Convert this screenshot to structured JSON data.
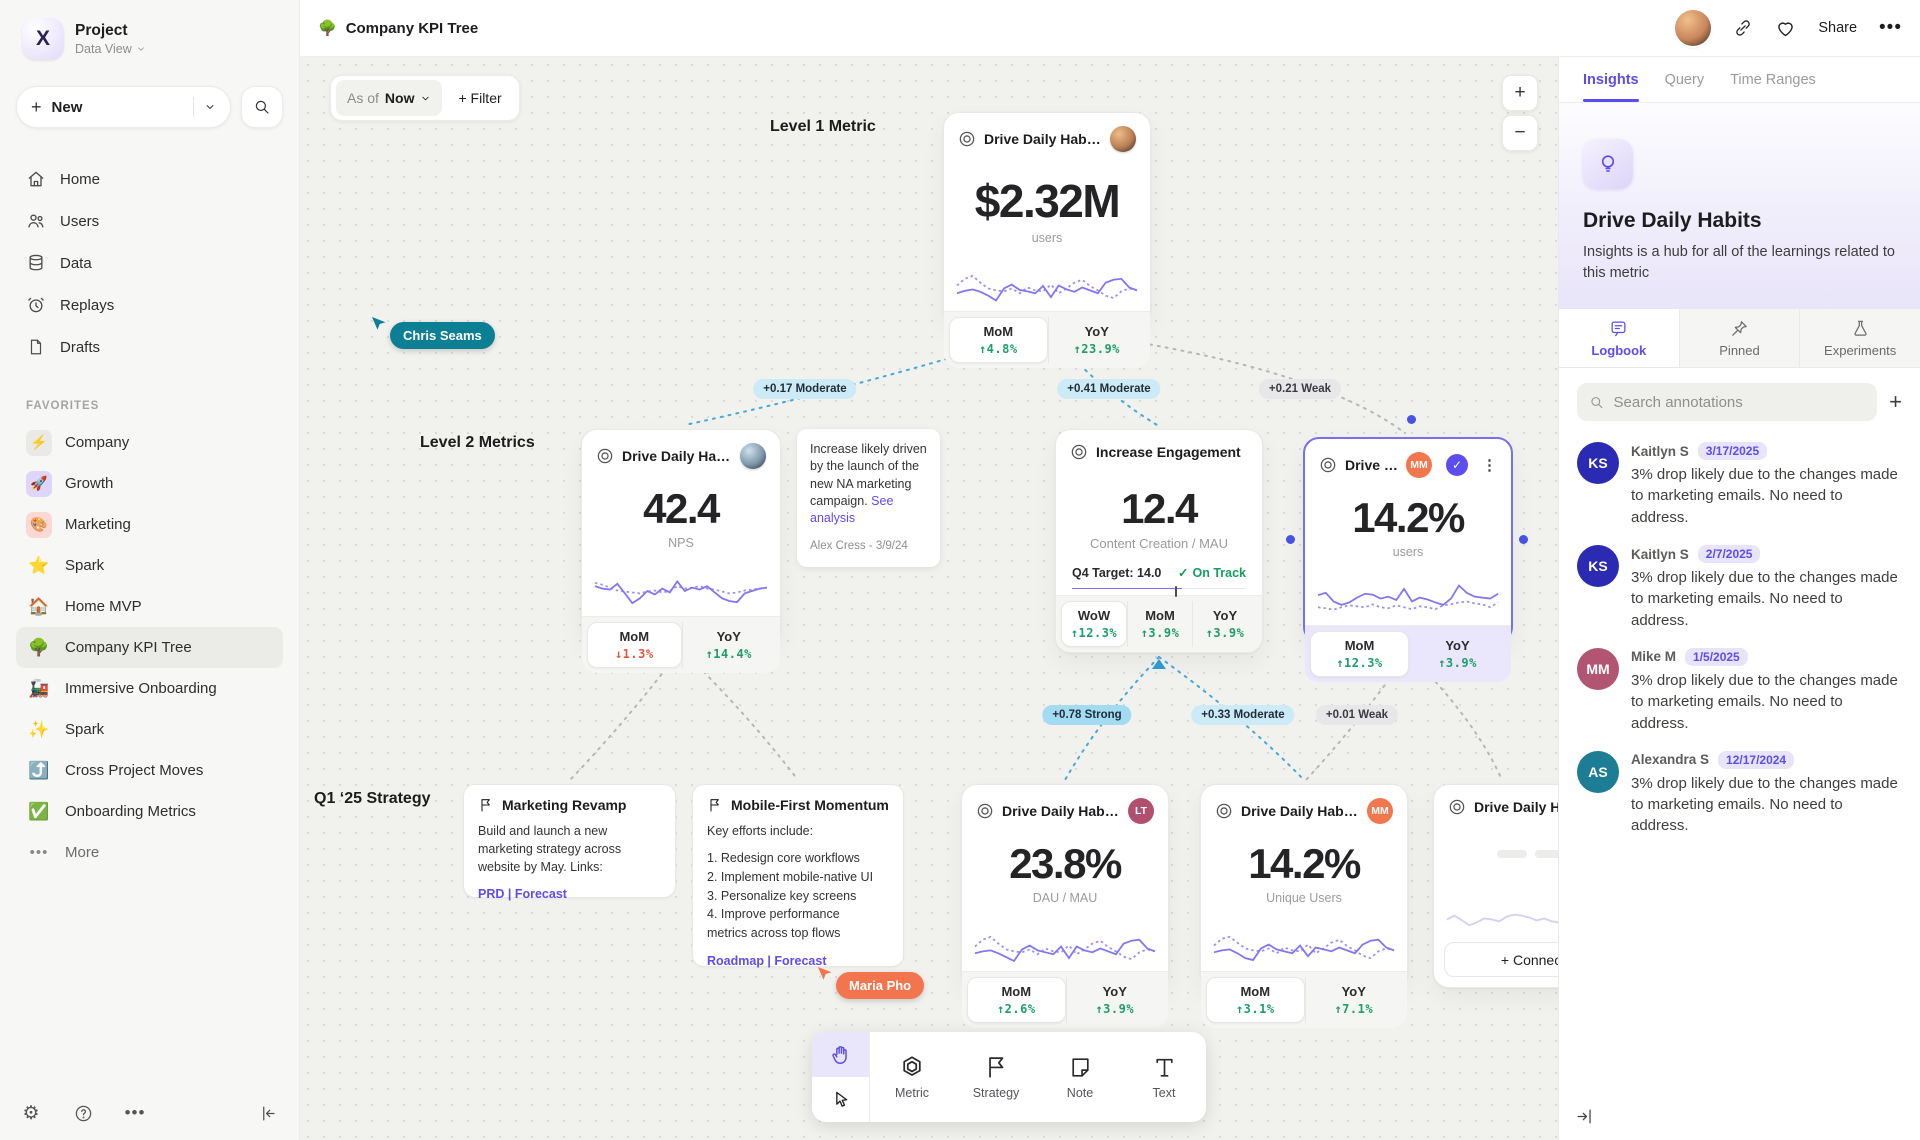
{
  "sidebar": {
    "project": {
      "name": "Project",
      "view": "Data View"
    },
    "new_label": "New",
    "nav": [
      {
        "label": "Home"
      },
      {
        "label": "Users"
      },
      {
        "label": "Data"
      },
      {
        "label": "Replays"
      },
      {
        "label": "Drafts"
      }
    ],
    "favorites_label": "FAVORITES",
    "favorites": [
      {
        "emoji": "⚡",
        "label": "Company"
      },
      {
        "emoji": "🚀",
        "label": "Growth"
      },
      {
        "emoji": "🎨",
        "label": "Marketing"
      },
      {
        "emoji": "⭐",
        "label": "Spark"
      },
      {
        "emoji": "🏠",
        "label": "Home MVP"
      },
      {
        "emoji": "🌳",
        "label": "Company KPI Tree"
      },
      {
        "emoji": "🚂",
        "label": "Immersive Onboarding"
      },
      {
        "emoji": "✨",
        "label": "Spark"
      },
      {
        "emoji": "⤴️",
        "label": "Cross Project Moves"
      },
      {
        "emoji": "✅",
        "label": "Onboarding Metrics"
      }
    ],
    "more_label": "More"
  },
  "topbar": {
    "emoji": "🌳",
    "title": "Company KPI Tree",
    "share_label": "Share"
  },
  "canvas": {
    "asof_prefix": "As of",
    "asof_value": "Now",
    "filter_label": "+  Filter",
    "zoom_in": "+",
    "zoom_out": "−",
    "level1_label": "Level 1 Metric",
    "level2_label": "Level 2 Metrics",
    "q1_label": "Q1 ‘25 Strategy",
    "edge_labels": [
      {
        "text": "+0.17 Moderate"
      },
      {
        "text": "+0.41 Moderate"
      },
      {
        "text": "+0.21 Weak"
      },
      {
        "text": "+0.78 Strong"
      },
      {
        "text": "+0.33 Moderate"
      },
      {
        "text": "+0.01 Weak"
      }
    ],
    "cursors": [
      {
        "name": "Chris Seams",
        "color": "#0c7f94"
      },
      {
        "name": "Maria Pho",
        "color": "#f3754d"
      }
    ]
  },
  "cards": {
    "l1": {
      "title": "Drive Daily Habbits",
      "value": "$2.32M",
      "unit": "users",
      "stats": [
        {
          "label": "MoM",
          "value": "↑4.8%"
        },
        {
          "label": "YoY",
          "value": "↑23.9%"
        }
      ]
    },
    "nps": {
      "title": "Drive Daily Habbits",
      "value": "42.4",
      "unit": "NPS",
      "stats": [
        {
          "label": "MoM",
          "value": "↓1.3%"
        },
        {
          "label": "YoY",
          "value": "↑14.4%"
        }
      ]
    },
    "engage": {
      "title": "Increase Engagement",
      "value": "12.4",
      "unit": "Content Creation / MAU",
      "target_label": "Q4 Target: 14.0",
      "status": "On Track",
      "progress": 63,
      "stats": [
        {
          "label": "WoW",
          "value": "↑12.3%"
        },
        {
          "label": "MoM",
          "value": "↑3.9%"
        },
        {
          "label": "YoY",
          "value": "↑3.9%"
        }
      ]
    },
    "selected": {
      "title": "Drive Daily Habb..",
      "badge": "MM",
      "value": "14.2%",
      "unit": "users",
      "stats": [
        {
          "label": "MoM",
          "value": "↑12.3%"
        },
        {
          "label": "YoY",
          "value": "↑3.9%"
        }
      ]
    },
    "dau": {
      "title": "Drive Daily Habbits",
      "badge": "LT",
      "value": "23.8%",
      "unit": "DAU / MAU",
      "stats": [
        {
          "label": "MoM",
          "value": "↑2.6%"
        },
        {
          "label": "YoY",
          "value": "↑3.9%"
        }
      ]
    },
    "unique": {
      "title": "Drive Daily Habbits",
      "badge": "MM",
      "value": "14.2%",
      "unit": "Unique Users",
      "stats": [
        {
          "label": "MoM",
          "value": "↑3.1%"
        },
        {
          "label": "YoY",
          "value": "↑7.1%"
        }
      ]
    },
    "partial": {
      "title": "Drive Daily Habbits",
      "connect_label": "+  Connect"
    }
  },
  "notes": {
    "annotation": {
      "text": "Increase likely driven by the launch of the new NA marketing campaign.",
      "link": "See analysis",
      "author": "Alex Cress - 3/9/24"
    },
    "marketing": {
      "title": "Marketing Revamp",
      "body": "Build and launch a new marketing strategy across website by May. Links:",
      "links": "PRD | Forecast"
    },
    "mobile": {
      "title": "Mobile-First Momentum",
      "intro": "Key efforts include:",
      "items": [
        "1.  Redesign core workflows",
        "2.  Implement mobile-native UI",
        "3.  Personalize key screens",
        "4.  Improve performance metrics across top flows"
      ],
      "links": "Roadmap | Forecast"
    }
  },
  "sparks": {
    "l1": {
      "solid": [
        30,
        35,
        38,
        33,
        25,
        15,
        40,
        48,
        37,
        34,
        30,
        45,
        22,
        46,
        38,
        33,
        42,
        36,
        30,
        52,
        58,
        60,
        42,
        36
      ],
      "dotted": [
        46,
        60,
        66,
        52,
        40,
        36,
        34,
        40,
        30,
        42,
        36,
        34,
        48,
        30,
        40,
        52,
        58,
        45,
        36,
        25,
        20,
        34,
        40,
        36
      ]
    },
    "nps": {
      "solid": [
        55,
        50,
        48,
        60,
        40,
        20,
        30,
        45,
        38,
        50,
        42,
        65,
        45,
        52,
        48,
        55,
        42,
        30,
        24,
        22,
        40,
        45,
        50,
        52
      ],
      "dotted": [
        62,
        58,
        52,
        46,
        44,
        42,
        40,
        44,
        46,
        42,
        45,
        55,
        50,
        52,
        55,
        50,
        48,
        44,
        40,
        42,
        46,
        48,
        50,
        52
      ]
    },
    "sel": {
      "solid": [
        55,
        60,
        42,
        35,
        40,
        50,
        58,
        56,
        48,
        52,
        45,
        68,
        42,
        50,
        46,
        40,
        35,
        48,
        75,
        60,
        52,
        50,
        48,
        58
      ],
      "dotted": [
        30,
        28,
        25,
        30,
        34,
        32,
        30,
        36,
        30,
        28,
        34,
        30,
        26,
        32,
        30,
        26,
        34,
        36,
        40,
        42,
        38,
        36,
        30,
        40
      ]
    },
    "dau": {
      "solid": [
        30,
        34,
        36,
        30,
        22,
        14,
        38,
        46,
        36,
        32,
        28,
        44,
        20,
        44,
        36,
        32,
        40,
        34,
        28,
        50,
        56,
        58,
        40,
        34
      ],
      "dotted": [
        44,
        58,
        64,
        50,
        38,
        34,
        32,
        38,
        28,
        40,
        34,
        32,
        46,
        28,
        38,
        50,
        56,
        43,
        34,
        23,
        18,
        32,
        38,
        34
      ]
    },
    "uni": {
      "solid": [
        32,
        36,
        38,
        30,
        20,
        16,
        40,
        48,
        38,
        34,
        30,
        46,
        24,
        42,
        38,
        34,
        42,
        36,
        30,
        48,
        56,
        58,
        42,
        36
      ],
      "dotted": [
        46,
        60,
        64,
        52,
        40,
        36,
        34,
        40,
        30,
        42,
        36,
        34,
        48,
        30,
        40,
        52,
        58,
        45,
        36,
        25,
        20,
        34,
        40,
        36
      ]
    },
    "part": {
      "solid": [
        40,
        48,
        38,
        28,
        34,
        42,
        40,
        36,
        46,
        50,
        48,
        44,
        38,
        42,
        36,
        34,
        38,
        46,
        52,
        40,
        36,
        38,
        34,
        42
      ]
    }
  },
  "toolbar": {
    "tools": [
      {
        "label": "Metric"
      },
      {
        "label": "Strategy"
      },
      {
        "label": "Note"
      },
      {
        "label": "Text"
      }
    ]
  },
  "panel": {
    "tabs": [
      {
        "label": "Insights"
      },
      {
        "label": "Query"
      },
      {
        "label": "Time Ranges"
      }
    ],
    "title": "Drive Daily Habits",
    "description": "Insights is a hub for all of the learnings related to this metric",
    "subtabs": [
      {
        "label": "Logbook"
      },
      {
        "label": "Pinned"
      },
      {
        "label": "Experiments"
      }
    ],
    "search_placeholder": "Search annotations",
    "add_label": "+",
    "annotations": [
      {
        "initials": "KS",
        "color": "#2a2ab2",
        "name": "Kaitlyn S",
        "date": "3/17/2025",
        "text": "3% drop likely due to the changes made to marketing emails. No need to address."
      },
      {
        "initials": "KS",
        "color": "#2a2ab2",
        "name": "Kaitlyn S",
        "date": "2/7/2025",
        "text": "3% drop likely due to the changes made to marketing emails. No need to address."
      },
      {
        "initials": "MM",
        "color": "#b25573",
        "name": "Mike M",
        "date": "1/5/2025",
        "text": "3% drop likely due to the changes made to marketing emails. No need to address."
      },
      {
        "initials": "AS",
        "color": "#1d7d95",
        "name": "Alexandra S",
        "date": "12/17/2024",
        "text": "3% drop likely due to the changes made to marketing emails. No need to address."
      }
    ]
  }
}
